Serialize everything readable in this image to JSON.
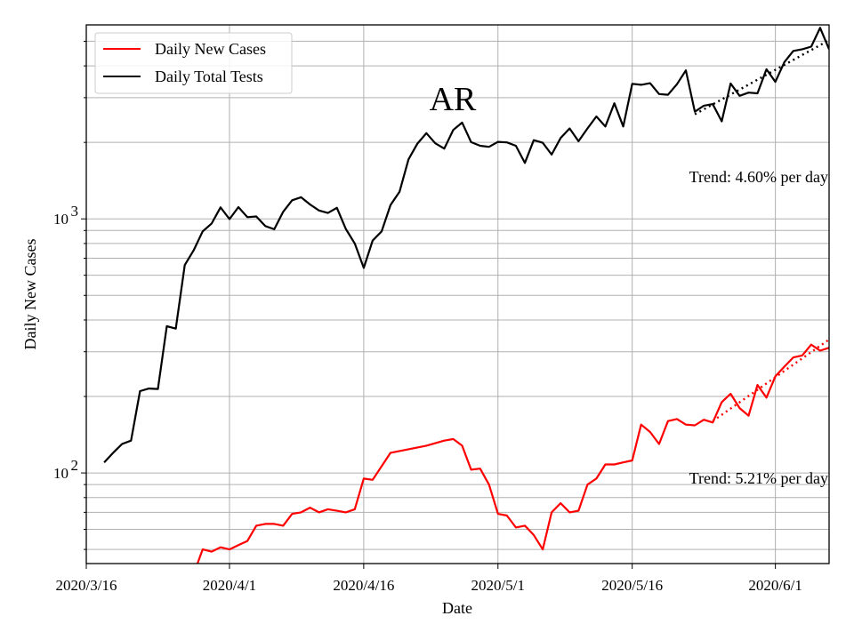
{
  "chart_data": {
    "type": "line",
    "title": "AR",
    "xlabel": "Date",
    "ylabel": "Daily New Cases",
    "y_scale": "log",
    "ylim": [
      44,
      5800
    ],
    "xlim": [
      "2020-03-16",
      "2020-06-07"
    ],
    "grid": true,
    "legend_position": "top-left",
    "x_ticks": [
      {
        "date": "2020-03-16",
        "label": "2020/3/16"
      },
      {
        "date": "2020-04-01",
        "label": "2020/4/1"
      },
      {
        "date": "2020-04-16",
        "label": "2020/4/16"
      },
      {
        "date": "2020-05-01",
        "label": "2020/5/1"
      },
      {
        "date": "2020-05-16",
        "label": "2020/5/16"
      },
      {
        "date": "2020-06-01",
        "label": "2020/6/1"
      }
    ],
    "y_ticks": [
      {
        "value": 100,
        "base": "10",
        "exp": "2"
      },
      {
        "value": 1000,
        "base": "10",
        "exp": "3"
      }
    ],
    "series": [
      {
        "name": "Daily New Cases",
        "color": "#ff0000",
        "points": [
          [
            "2020-03-27",
            38
          ],
          [
            "2020-03-28",
            40
          ],
          [
            "2020-03-29",
            50
          ],
          [
            "2020-03-30",
            49
          ],
          [
            "2020-03-31",
            51
          ],
          [
            "2020-04-01",
            50
          ],
          [
            "2020-04-02",
            52
          ],
          [
            "2020-04-03",
            54
          ],
          [
            "2020-04-04",
            62
          ],
          [
            "2020-04-05",
            63
          ],
          [
            "2020-04-06",
            63
          ],
          [
            "2020-04-07",
            62
          ],
          [
            "2020-04-08",
            69
          ],
          [
            "2020-04-09",
            70
          ],
          [
            "2020-04-10",
            73
          ],
          [
            "2020-04-11",
            70
          ],
          [
            "2020-04-12",
            72
          ],
          [
            "2020-04-13",
            71
          ],
          [
            "2020-04-14",
            70
          ],
          [
            "2020-04-15",
            72
          ],
          [
            "2020-04-16",
            95
          ],
          [
            "2020-04-17",
            94
          ],
          [
            "2020-04-19",
            120
          ],
          [
            "2020-04-21",
            124
          ],
          [
            "2020-04-23",
            128
          ],
          [
            "2020-04-25",
            134
          ],
          [
            "2020-04-26",
            136
          ],
          [
            "2020-04-27",
            128
          ],
          [
            "2020-04-28",
            103
          ],
          [
            "2020-04-29",
            104
          ],
          [
            "2020-04-30",
            90
          ],
          [
            "2020-05-01",
            69
          ],
          [
            "2020-05-02",
            68
          ],
          [
            "2020-05-03",
            61
          ],
          [
            "2020-05-04",
            62
          ],
          [
            "2020-05-05",
            57
          ],
          [
            "2020-05-06",
            50
          ],
          [
            "2020-05-07",
            70
          ],
          [
            "2020-05-08",
            76
          ],
          [
            "2020-05-09",
            70
          ],
          [
            "2020-05-10",
            71
          ],
          [
            "2020-05-11",
            90
          ],
          [
            "2020-05-12",
            95
          ],
          [
            "2020-05-13",
            108
          ],
          [
            "2020-05-14",
            108
          ],
          [
            "2020-05-15",
            110
          ],
          [
            "2020-05-16",
            112
          ],
          [
            "2020-05-17",
            155
          ],
          [
            "2020-05-18",
            145
          ],
          [
            "2020-05-19",
            130
          ],
          [
            "2020-05-20",
            160
          ],
          [
            "2020-05-21",
            163
          ],
          [
            "2020-05-22",
            155
          ],
          [
            "2020-05-23",
            154
          ],
          [
            "2020-05-24",
            162
          ],
          [
            "2020-05-25",
            158
          ],
          [
            "2020-05-26",
            190
          ],
          [
            "2020-05-27",
            205
          ],
          [
            "2020-05-28",
            180
          ],
          [
            "2020-05-29",
            168
          ],
          [
            "2020-05-30",
            222
          ],
          [
            "2020-05-31",
            198
          ],
          [
            "2020-06-01",
            240
          ],
          [
            "2020-06-02",
            262
          ],
          [
            "2020-06-03",
            285
          ],
          [
            "2020-06-04",
            290
          ],
          [
            "2020-06-05",
            320
          ],
          [
            "2020-06-06",
            303
          ],
          [
            "2020-06-07",
            311
          ],
          [
            "2020-06-08",
            325
          ]
        ]
      },
      {
        "name": "Daily Total Tests",
        "color": "#000000",
        "points": [
          [
            "2020-03-18",
            110
          ],
          [
            "2020-03-19",
            120
          ],
          [
            "2020-03-20",
            130
          ],
          [
            "2020-03-21",
            134
          ],
          [
            "2020-03-22",
            210
          ],
          [
            "2020-03-23",
            215
          ],
          [
            "2020-03-24",
            214
          ],
          [
            "2020-03-25",
            378
          ],
          [
            "2020-03-26",
            370
          ],
          [
            "2020-03-27",
            658
          ],
          [
            "2020-03-28",
            752
          ],
          [
            "2020-03-29",
            893
          ],
          [
            "2020-03-30",
            958
          ],
          [
            "2020-03-31",
            1110
          ],
          [
            "2020-04-01",
            998
          ],
          [
            "2020-04-02",
            1112
          ],
          [
            "2020-04-03",
            1016
          ],
          [
            "2020-04-04",
            1022
          ],
          [
            "2020-04-05",
            937
          ],
          [
            "2020-04-06",
            910
          ],
          [
            "2020-04-07",
            1066
          ],
          [
            "2020-04-08",
            1184
          ],
          [
            "2020-04-09",
            1216
          ],
          [
            "2020-04-10",
            1140
          ],
          [
            "2020-04-11",
            1079
          ],
          [
            "2020-04-12",
            1055
          ],
          [
            "2020-04-13",
            1105
          ],
          [
            "2020-04-14",
            913
          ],
          [
            "2020-04-15",
            800
          ],
          [
            "2020-04-16",
            641
          ],
          [
            "2020-04-17",
            822
          ],
          [
            "2020-04-18",
            893
          ],
          [
            "2020-04-19",
            1134
          ],
          [
            "2020-04-20",
            1278
          ],
          [
            "2020-04-21",
            1714
          ],
          [
            "2020-04-22",
            1978
          ],
          [
            "2020-04-23",
            2174
          ],
          [
            "2020-04-24",
            1984
          ],
          [
            "2020-04-25",
            1890
          ],
          [
            "2020-04-26",
            2239
          ],
          [
            "2020-04-27",
            2394
          ],
          [
            "2020-04-28",
            2004
          ],
          [
            "2020-04-29",
            1940
          ],
          [
            "2020-04-30",
            1920
          ],
          [
            "2020-05-01",
            2010
          ],
          [
            "2020-05-02",
            2000
          ],
          [
            "2020-05-03",
            1940
          ],
          [
            "2020-05-04",
            1660
          ],
          [
            "2020-05-05",
            2040
          ],
          [
            "2020-05-06",
            1994
          ],
          [
            "2020-05-07",
            1790
          ],
          [
            "2020-05-08",
            2080
          ],
          [
            "2020-05-09",
            2270
          ],
          [
            "2020-05-10",
            2020
          ],
          [
            "2020-05-11",
            2270
          ],
          [
            "2020-05-12",
            2530
          ],
          [
            "2020-05-13",
            2310
          ],
          [
            "2020-05-14",
            2850
          ],
          [
            "2020-05-15",
            2310
          ],
          [
            "2020-05-16",
            3400
          ],
          [
            "2020-05-17",
            3370
          ],
          [
            "2020-05-18",
            3420
          ],
          [
            "2020-05-19",
            3100
          ],
          [
            "2020-05-20",
            3080
          ],
          [
            "2020-05-21",
            3390
          ],
          [
            "2020-05-22",
            3840
          ],
          [
            "2020-05-23",
            2640
          ],
          [
            "2020-05-24",
            2790
          ],
          [
            "2020-05-25",
            2830
          ],
          [
            "2020-05-26",
            2420
          ],
          [
            "2020-05-27",
            3410
          ],
          [
            "2020-05-28",
            3050
          ],
          [
            "2020-05-29",
            3140
          ],
          [
            "2020-05-30",
            3120
          ],
          [
            "2020-05-31",
            3880
          ],
          [
            "2020-06-01",
            3460
          ],
          [
            "2020-06-02",
            4140
          ],
          [
            "2020-06-03",
            4580
          ],
          [
            "2020-06-04",
            4650
          ],
          [
            "2020-06-05",
            4760
          ],
          [
            "2020-06-06",
            5650
          ],
          [
            "2020-06-07",
            4650
          ]
        ]
      }
    ],
    "trends": [
      {
        "color": "#ff0000",
        "start": [
          "2020-05-25",
          160
        ],
        "end": [
          "2020-06-07",
          335
        ],
        "label": "Trend: 5.21% per day"
      },
      {
        "color": "#000000",
        "start": [
          "2020-05-23",
          2580
        ],
        "end": [
          "2020-06-07",
          5050
        ],
        "label": "Trend: 4.60% per day"
      }
    ]
  }
}
